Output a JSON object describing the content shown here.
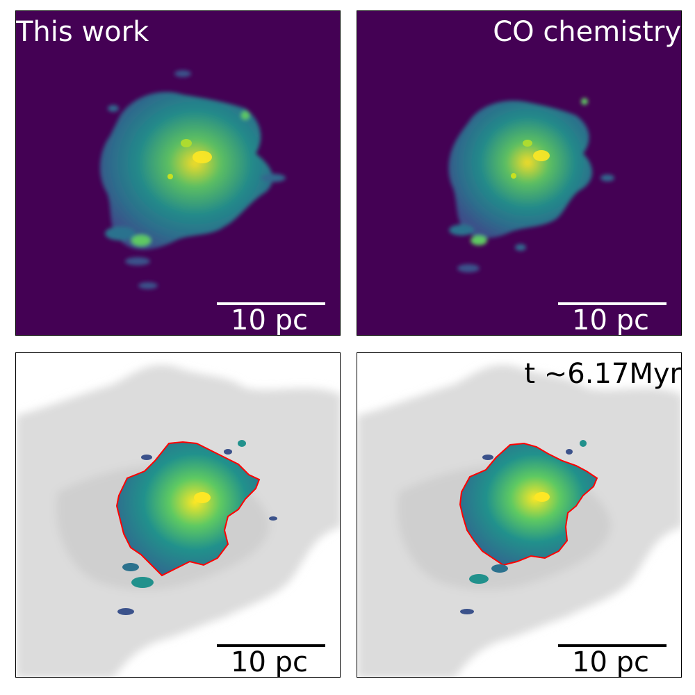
{
  "panels": {
    "top_left": {
      "label": "This work"
    },
    "top_right": {
      "label": "CO chemistry"
    },
    "bottom_right": {
      "label": "t $\\sim$6.17Myr",
      "label_display": "t ~6.17Myr"
    }
  },
  "scalebar": {
    "label": "10 pc"
  },
  "colors": {
    "viridis_background": "#440154",
    "viridis_green": "#21918c",
    "viridis_bright": "#fde725",
    "contour_red": "#ff0000",
    "grey_gas": "#dcdcdc",
    "scalebar_light": "#ffffff",
    "scalebar_dark": "#000000"
  }
}
